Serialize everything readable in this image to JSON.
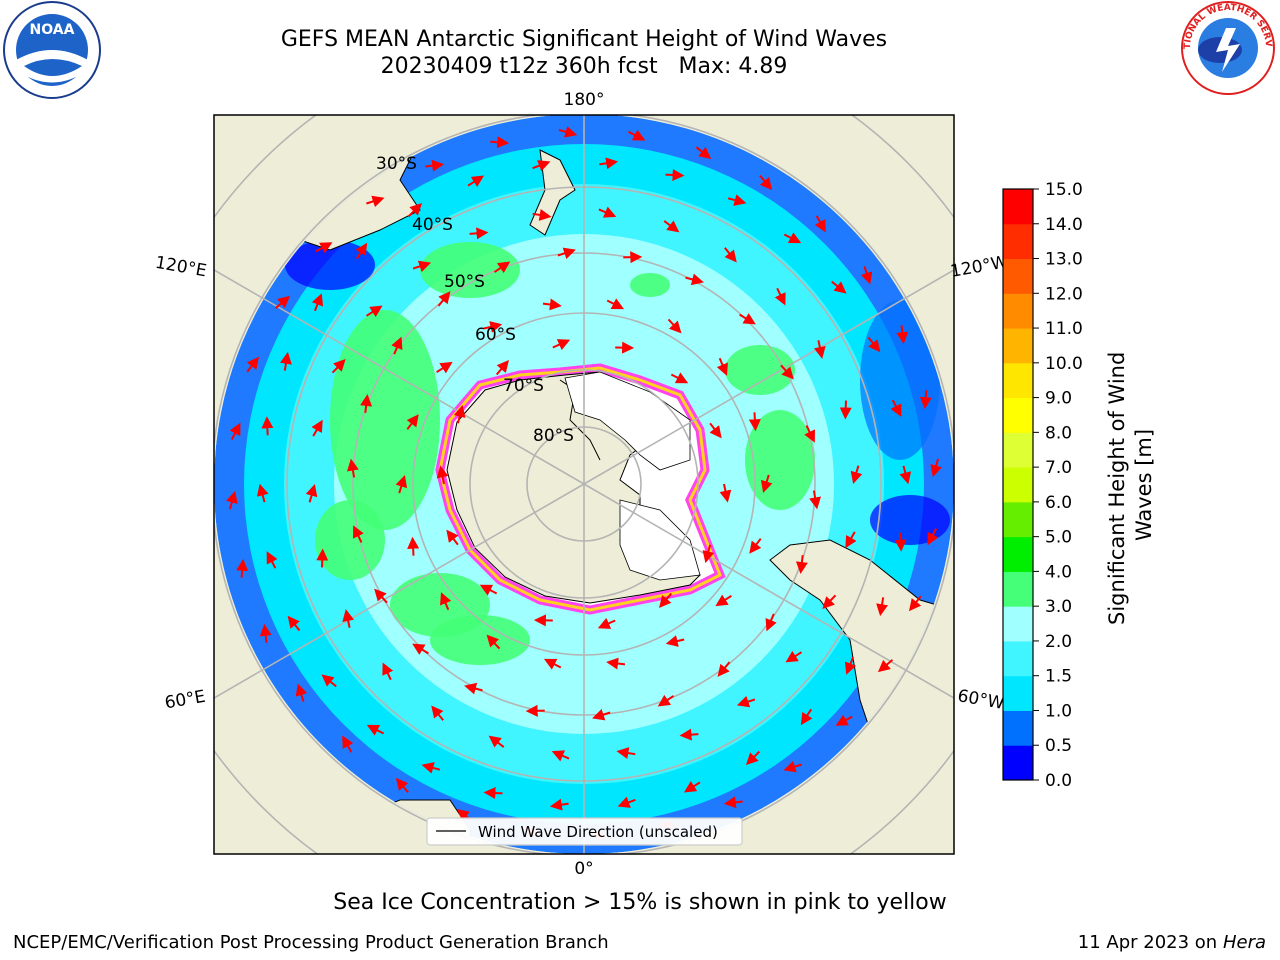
{
  "title": {
    "line1": "GEFS MEAN Antarctic Significant Height of Wind Waves",
    "line2": "20230409 t12z 360h fcst   Max: 4.89"
  },
  "map": {
    "projection": "south-polar-stereographic",
    "meridian_labels": [
      "180°",
      "120°E",
      "120°W",
      "60°E",
      "60°W",
      "0°"
    ],
    "parallel_labels": [
      "30°S",
      "40°S",
      "50°S",
      "60°S",
      "70°S",
      "80°S"
    ],
    "legend": {
      "entry": "Wind Wave Direction (unscaled)"
    },
    "colors": {
      "land": "#eeeed8",
      "ice_edge_pink": "#ff44ee",
      "ice_edge_yellow": "#ffd21e",
      "arrow": "#ff0000",
      "grid": "#b4b4b4"
    }
  },
  "colorbar": {
    "label": "Significant Height of Wind Waves [m]",
    "ticks": [
      "0.0",
      "0.5",
      "1.0",
      "1.5",
      "2.0",
      "3.0",
      "4.0",
      "5.0",
      "6.0",
      "7.0",
      "8.0",
      "9.0",
      "10.0",
      "11.0",
      "12.0",
      "13.0",
      "14.0",
      "15.0"
    ],
    "colors": [
      "#0000ff",
      "#0070ff",
      "#00e6ff",
      "#40f5ff",
      "#a0ffff",
      "#44ff77",
      "#00ee00",
      "#66ee00",
      "#ccff00",
      "#ddff33",
      "#ffff00",
      "#ffe600",
      "#ffb400",
      "#ff8c00",
      "#ff5a00",
      "#ff2d00",
      "#ff0000"
    ]
  },
  "caption": "Sea Ice Concentration > 15% is shown in pink to yellow",
  "footer": {
    "credit": "NCEP/EMC/Verification Post Processing Product Generation Branch",
    "date": "11 Apr 2023 on ",
    "system": "Hera"
  },
  "logos": {
    "noaa": "NOAA",
    "nws": "NATIONAL WEATHER SERVICE"
  }
}
